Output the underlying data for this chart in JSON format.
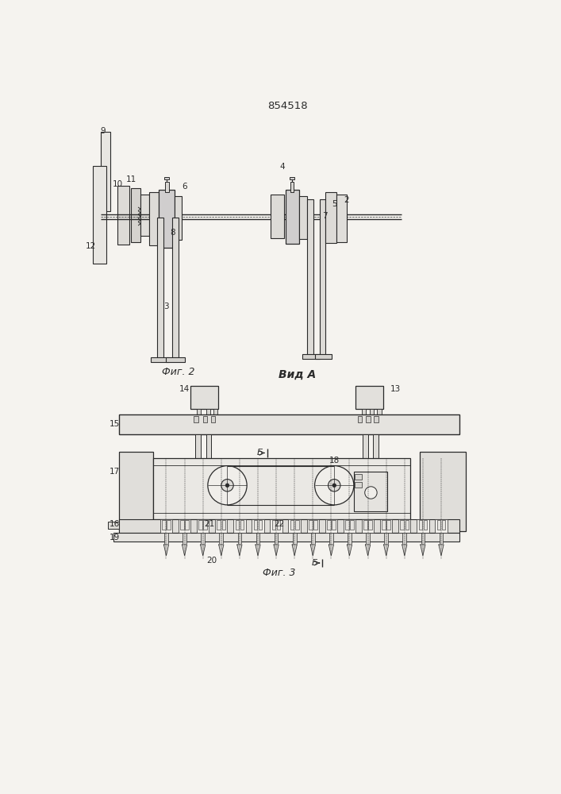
{
  "title": "854518",
  "fig2_label": "Фиг. 2",
  "vidA_label": "Вид A",
  "fig3_label": "Фиг. 3",
  "bg_color": "#f5f3ef",
  "line_color": "#2a2a2a",
  "draw_color": "#3a3a3a"
}
